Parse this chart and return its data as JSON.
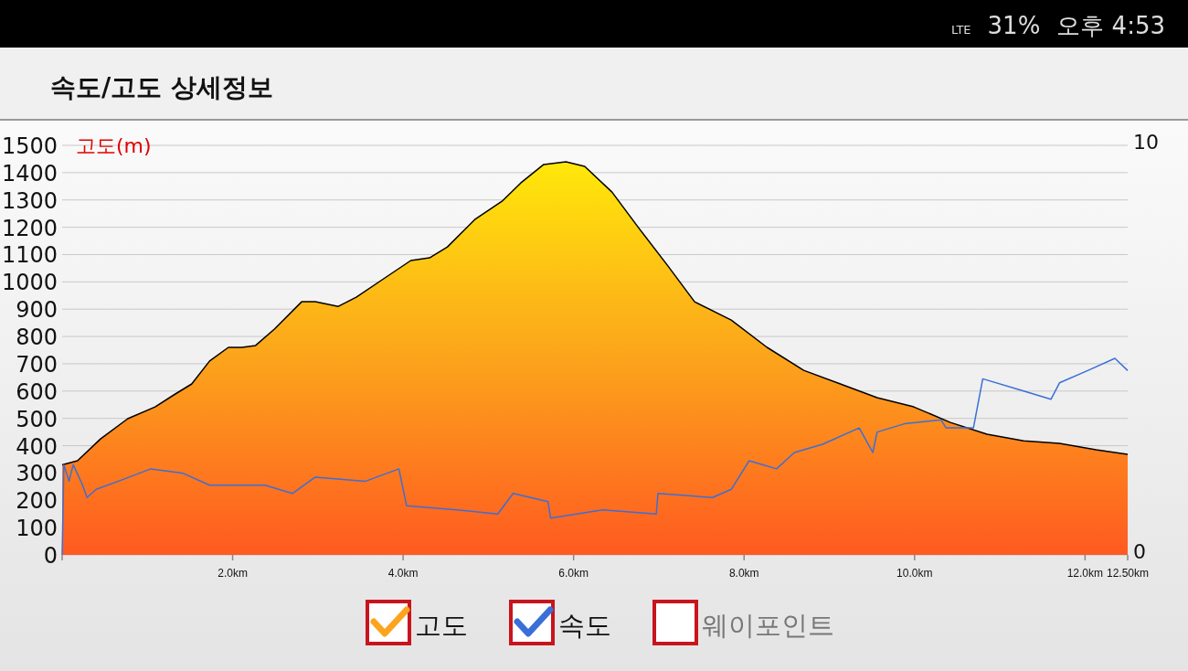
{
  "chart_data": {
    "type": "area",
    "title": "속도/고도 상세정보",
    "ylabel": "고도(m)",
    "xlim": [
      0,
      12.5
    ],
    "xticks": [
      {
        "value": 0,
        "label": null
      },
      {
        "value": 2,
        "label": "2.0km"
      },
      {
        "value": 4,
        "label": "4.0km"
      },
      {
        "value": 6,
        "label": "6.0km"
      },
      {
        "value": 8,
        "label": "8.0km"
      },
      {
        "value": 10,
        "label": "10.0km"
      },
      {
        "value": 12,
        "label": "12.0km"
      },
      {
        "value": 12.5,
        "label": "12.50km"
      }
    ],
    "ylim": [
      0,
      1500
    ],
    "yticks": [
      0,
      100,
      200,
      300,
      400,
      500,
      600,
      700,
      800,
      900,
      1000,
      1100,
      1200,
      1300,
      1400,
      1500
    ],
    "y2lim": [
      0,
      10
    ],
    "y2ticks": [
      0,
      10
    ],
    "grid": "y",
    "legend": "bottom",
    "series": [
      {
        "name": "고도",
        "type": "area",
        "color": "#fca41c",
        "x": [
          0,
          0.18,
          0.45,
          0.77,
          1.09,
          1.31,
          1.52,
          1.73,
          1.95,
          2.11,
          2.27,
          2.49,
          2.81,
          2.97,
          3.24,
          3.45,
          3.77,
          4.09,
          4.31,
          4.52,
          4.84,
          5.16,
          5.38,
          5.65,
          5.91,
          6.13,
          6.45,
          6.77,
          7.1,
          7.42,
          7.85,
          8.27,
          8.7,
          9.13,
          9.56,
          9.99,
          10.42,
          10.85,
          11.28,
          11.7,
          12.13,
          12.5
        ],
        "values": [
          330,
          345,
          425,
          499,
          542,
          586,
          626,
          710,
          760,
          760,
          767,
          827,
          927,
          927,
          910,
          944,
          1011,
          1078,
          1088,
          1128,
          1228,
          1295,
          1362,
          1430,
          1440,
          1423,
          1329,
          1195,
          1061,
          927,
          860,
          760,
          676,
          626,
          576,
          542,
          485,
          442,
          418,
          408,
          385,
          368
        ]
      },
      {
        "name": "속도",
        "type": "line",
        "axis": "y2",
        "color": "#3a6fd8",
        "x": [
          0,
          0.02,
          0.08,
          0.13,
          0.24,
          0.29,
          0.4,
          0.66,
          1.04,
          1.41,
          1.73,
          2.38,
          2.7,
          2.97,
          3.56,
          3.95,
          4.04,
          4.63,
          5.11,
          5.29,
          5.7,
          5.73,
          6.34,
          6.97,
          6.99,
          7.63,
          7.85,
          8.06,
          8.38,
          8.59,
          8.92,
          9.35,
          9.51,
          9.56,
          9.88,
          10.31,
          10.37,
          10.69,
          10.8,
          11.28,
          11.6,
          11.7,
          12.03,
          12.35,
          12.5
        ],
        "values": [
          0,
          2.2,
          1.8,
          2.2,
          1.7,
          1.4,
          1.6,
          1.8,
          2.1,
          2.0,
          1.7,
          1.7,
          1.5,
          1.9,
          1.8,
          2.1,
          1.2,
          1.1,
          1.0,
          1.5,
          1.3,
          0.9,
          1.1,
          1.0,
          1.5,
          1.4,
          1.6,
          2.3,
          2.1,
          2.5,
          2.7,
          3.1,
          2.5,
          3.0,
          3.2,
          3.3,
          3.1,
          3.1,
          4.3,
          4.0,
          3.8,
          4.2,
          4.5,
          4.8,
          4.5
        ]
      }
    ],
    "annotations": [
      "LTE",
      "31%",
      "오후 4:53",
      "웨이포인트"
    ]
  }
}
